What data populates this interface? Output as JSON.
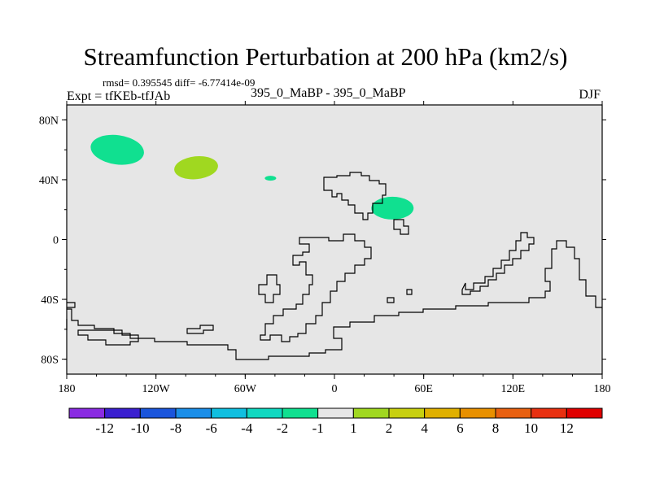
{
  "title": "Streamfunction Perturbation at 200 hPa (km2/s)",
  "stats_text": "rmsd= 0.395545 diff= -6.77414e-09",
  "expt_text": "Expt = tfKEb-tfJAb",
  "experiment_label": "395_0_MaBP - 395_0_MaBP",
  "season": "DJF",
  "chart_data": {
    "type": "heatmap",
    "title": "Streamfunction Perturbation at 200 hPa (km2/s)",
    "xlim": [
      -180,
      180
    ],
    "ylim": [
      -90,
      90
    ],
    "x_ticks": [
      {
        "value": -180,
        "label": "180"
      },
      {
        "value": -120,
        "label": "120W"
      },
      {
        "value": -60,
        "label": "60W"
      },
      {
        "value": 0,
        "label": "0"
      },
      {
        "value": 60,
        "label": "60E"
      },
      {
        "value": 120,
        "label": "120E"
      },
      {
        "value": 180,
        "label": "180"
      }
    ],
    "y_ticks": [
      {
        "value": 80,
        "label": "80N"
      },
      {
        "value": 40,
        "label": "40N"
      },
      {
        "value": 0,
        "label": "0"
      },
      {
        "value": -40,
        "label": "40S"
      },
      {
        "value": -80,
        "label": "80S"
      }
    ],
    "background_color": "#e6e6e6",
    "colorbar": {
      "labels": [
        "-12",
        "-10",
        "-8",
        "-6",
        "-4",
        "-2",
        "-1",
        "1",
        "2",
        "4",
        "6",
        "8",
        "10",
        "12"
      ],
      "colors": [
        "#8a2be2",
        "#3a1fd0",
        "#1a55dc",
        "#1a8ee8",
        "#10bfe0",
        "#10d8c0",
        "#10e090",
        "#e6e6e6",
        "#a0d820",
        "#c8d010",
        "#e0b000",
        "#e89000",
        "#e86010",
        "#e83010",
        "#e00000"
      ]
    },
    "anomalies": [
      {
        "lon": -146,
        "lat": 60,
        "value": -1.5,
        "color": "#10e090"
      },
      {
        "lon": -93,
        "lat": 48,
        "value": 1.5,
        "color": "#a0d820"
      },
      {
        "lon": -43,
        "lat": 41,
        "value": -1.5,
        "color": "#10e090"
      },
      {
        "lon": 39,
        "lat": 21,
        "value": -1.5,
        "color": "#10e090"
      }
    ],
    "outline_color": "#000000"
  }
}
